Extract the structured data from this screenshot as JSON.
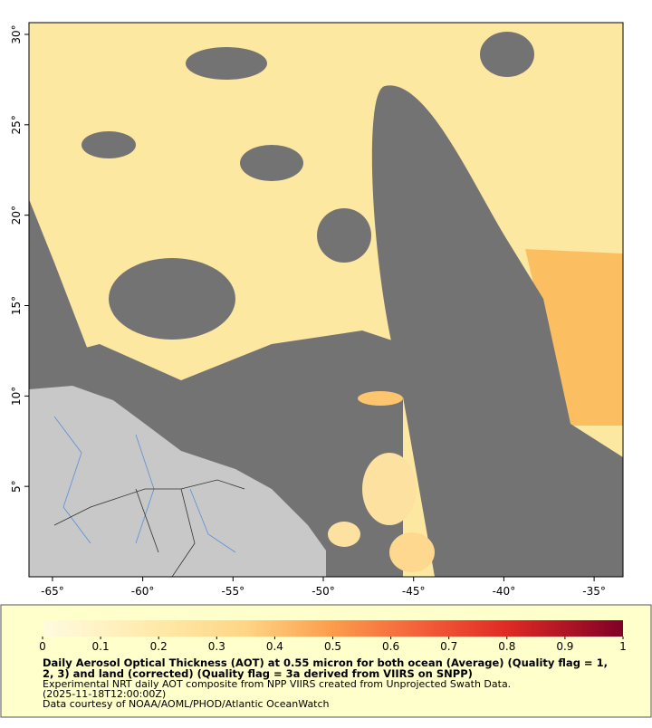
{
  "map": {
    "lonlim": [
      -66.3,
      -33.4
    ],
    "latlim": [
      0,
      30.65
    ],
    "lonticks": [
      {
        "value": -65,
        "label": "-65°"
      },
      {
        "value": -60,
        "label": "-60°"
      },
      {
        "value": -55,
        "label": "-55°"
      },
      {
        "value": -50,
        "label": "-50°"
      },
      {
        "value": -45,
        "label": "-45°"
      },
      {
        "value": -40,
        "label": "-40°"
      },
      {
        "value": -35,
        "label": "-35°"
      }
    ],
    "latticks": [
      {
        "value": 5,
        "label": "5°"
      },
      {
        "value": 10,
        "label": "10°"
      },
      {
        "value": 15,
        "label": "15°"
      },
      {
        "value": 20,
        "label": "20°"
      },
      {
        "value": 25,
        "label": "25°"
      },
      {
        "value": 30,
        "label": "30°"
      }
    ]
  },
  "colorbar": {
    "lim": [
      0,
      1
    ],
    "ticks": [
      0,
      0.1,
      0.2,
      0.3,
      0.4,
      0.5,
      0.6,
      0.7,
      0.8,
      0.9,
      1
    ]
  },
  "caption": {
    "title": [
      "Daily Aerosol Optical Thickness (AOT) at 0.55 micron for both ocean (Average) (Quality flag = 1,",
      "2, 3) and land (corrected) (Quality flag = 3a derived from VIIRS on SNPP)"
    ],
    "notes": [
      "Experimental NRT daily AOT composite from NPP VIIRS created from Unprojected Swath Data.",
      "(2025-11-18T12:00:00Z)",
      "Data courtesy of NOAA/AOML/PHOD/Atlantic OceanWatch"
    ]
  }
}
